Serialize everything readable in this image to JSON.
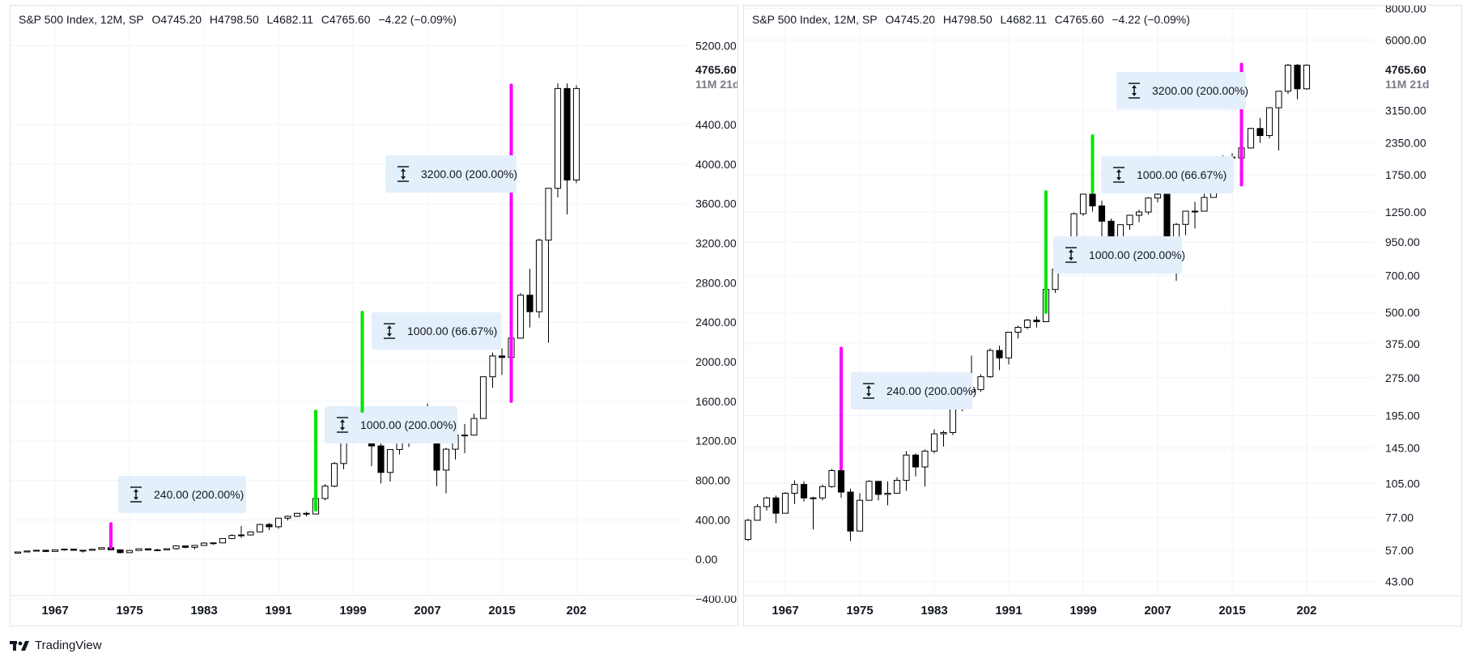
{
  "header": {
    "symbol": "S&P 500 Index, 12M, SP",
    "open": "O4745.20",
    "high": "H4798.50",
    "low": "L4682.11",
    "close": "C4765.60",
    "change": "−4.22 (−0.09%)"
  },
  "footer": {
    "brand": "TradingView"
  },
  "colors": {
    "up_fill": "#ffffff",
    "down_fill": "#000000",
    "wick": "#000000",
    "magenta": "#ff00ff",
    "green": "#00e600",
    "badge": "#e3effa"
  },
  "chart_data": [
    {
      "type": "candlestick",
      "scale": "linear",
      "ylim": [
        -400,
        5400
      ],
      "y_ticks": [
        "5200.00",
        "4400.00",
        "4000.00",
        "3600.00",
        "3200.00",
        "2800.00",
        "2400.00",
        "2000.00",
        "1600.00",
        "1200.00",
        "800.00",
        "400.00",
        "0.00",
        "−400.00"
      ],
      "x_ticks": [
        "1967",
        "1975",
        "1983",
        "1991",
        "1999",
        "2007",
        "2015",
        "202"
      ],
      "last_price_label": "4765.60",
      "countdown_label": "11M 21d",
      "annotations": [
        {
          "label": "240.00 (200.00%)",
          "year": 1973,
          "from": 120,
          "to": 360,
          "color": "magenta"
        },
        {
          "label": "1000.00 (200.00%)",
          "year": 1995,
          "from": 500,
          "to": 1500,
          "color": "green"
        },
        {
          "label": "1000.00 (66.67%)",
          "year": 2000,
          "from": 1500,
          "to": 2500,
          "color": "green"
        },
        {
          "label": "3200.00 (200.00%)",
          "year": 2016,
          "from": 1600,
          "to": 4800,
          "color": "magenta"
        }
      ]
    },
    {
      "type": "candlestick",
      "scale": "log",
      "ylim": [
        38,
        8200
      ],
      "y_ticks": [
        "8000.00",
        "6000.00",
        "3150.00",
        "2350.00",
        "1750.00",
        "1250.00",
        "950.00",
        "700.00",
        "500.00",
        "375.00",
        "275.00",
        "195.00",
        "145.00",
        "105.00",
        "77.00",
        "57.00",
        "43.00"
      ],
      "x_ticks": [
        "1967",
        "1975",
        "1983",
        "1991",
        "1999",
        "2007",
        "2015",
        "202"
      ],
      "last_price_label": "4765.60",
      "countdown_label": "11M 21d",
      "annotations": [
        {
          "label": "240.00 (200.00%)",
          "year": 1973,
          "from": 120,
          "to": 360,
          "color": "magenta"
        },
        {
          "label": "1000.00 (200.00%)",
          "year": 1995,
          "from": 500,
          "to": 1500,
          "color": "green"
        },
        {
          "label": "1000.00 (66.67%)",
          "year": 2000,
          "from": 1500,
          "to": 2500,
          "color": "green"
        },
        {
          "label": "3200.00 (200.00%)",
          "year": 2016,
          "from": 1600,
          "to": 4800,
          "color": "magenta"
        }
      ]
    }
  ],
  "candles": [
    {
      "year": 1963,
      "o": 63,
      "h": 76,
      "l": 62,
      "c": 75
    },
    {
      "year": 1964,
      "o": 75,
      "h": 87,
      "l": 75,
      "c": 85
    },
    {
      "year": 1965,
      "o": 85,
      "h": 93,
      "l": 82,
      "c": 92
    },
    {
      "year": 1966,
      "o": 92,
      "h": 94,
      "l": 73,
      "c": 80
    },
    {
      "year": 1967,
      "o": 80,
      "h": 97,
      "l": 80,
      "c": 96
    },
    {
      "year": 1968,
      "o": 96,
      "h": 108,
      "l": 87,
      "c": 104
    },
    {
      "year": 1969,
      "o": 104,
      "h": 107,
      "l": 89,
      "c": 92
    },
    {
      "year": 1970,
      "o": 92,
      "h": 93,
      "l": 69,
      "c": 92
    },
    {
      "year": 1971,
      "o": 92,
      "h": 104,
      "l": 90,
      "c": 102
    },
    {
      "year": 1972,
      "o": 102,
      "h": 120,
      "l": 101,
      "c": 118
    },
    {
      "year": 1973,
      "o": 118,
      "h": 120,
      "l": 92,
      "c": 97
    },
    {
      "year": 1974,
      "o": 97,
      "h": 100,
      "l": 62,
      "c": 68
    },
    {
      "year": 1975,
      "o": 68,
      "h": 96,
      "l": 70,
      "c": 90
    },
    {
      "year": 1976,
      "o": 90,
      "h": 108,
      "l": 90,
      "c": 107
    },
    {
      "year": 1977,
      "o": 107,
      "h": 107,
      "l": 90,
      "c": 95
    },
    {
      "year": 1978,
      "o": 95,
      "h": 107,
      "l": 86,
      "c": 96
    },
    {
      "year": 1979,
      "o": 96,
      "h": 111,
      "l": 96,
      "c": 108
    },
    {
      "year": 1980,
      "o": 108,
      "h": 141,
      "l": 98,
      "c": 136
    },
    {
      "year": 1981,
      "o": 136,
      "h": 138,
      "l": 112,
      "c": 122
    },
    {
      "year": 1982,
      "o": 122,
      "h": 143,
      "l": 102,
      "c": 141
    },
    {
      "year": 1983,
      "o": 141,
      "h": 172,
      "l": 138,
      "c": 165
    },
    {
      "year": 1984,
      "o": 165,
      "h": 170,
      "l": 147,
      "c": 167
    },
    {
      "year": 1985,
      "o": 167,
      "h": 212,
      "l": 163,
      "c": 211
    },
    {
      "year": 1986,
      "o": 211,
      "h": 254,
      "l": 203,
      "c": 242
    },
    {
      "year": 1987,
      "o": 242,
      "h": 337,
      "l": 216,
      "c": 247
    },
    {
      "year": 1988,
      "o": 247,
      "h": 284,
      "l": 242,
      "c": 278
    },
    {
      "year": 1989,
      "o": 278,
      "h": 360,
      "l": 275,
      "c": 353
    },
    {
      "year": 1990,
      "o": 353,
      "h": 369,
      "l": 295,
      "c": 330
    },
    {
      "year": 1991,
      "o": 330,
      "h": 418,
      "l": 311,
      "c": 417
    },
    {
      "year": 1992,
      "o": 417,
      "h": 442,
      "l": 394,
      "c": 436
    },
    {
      "year": 1993,
      "o": 436,
      "h": 471,
      "l": 429,
      "c": 466
    },
    {
      "year": 1994,
      "o": 466,
      "h": 482,
      "l": 435,
      "c": 459
    },
    {
      "year": 1995,
      "o": 459,
      "h": 622,
      "l": 459,
      "c": 616
    },
    {
      "year": 1996,
      "o": 616,
      "h": 761,
      "l": 597,
      "c": 741
    },
    {
      "year": 1997,
      "o": 741,
      "h": 984,
      "l": 729,
      "c": 970
    },
    {
      "year": 1998,
      "o": 970,
      "h": 1244,
      "l": 912,
      "c": 1229
    },
    {
      "year": 1999,
      "o": 1229,
      "h": 1473,
      "l": 1205,
      "c": 1469
    },
    {
      "year": 2000,
      "o": 1469,
      "h": 1553,
      "l": 1254,
      "c": 1320
    },
    {
      "year": 2001,
      "o": 1320,
      "h": 1383,
      "l": 944,
      "c": 1148
    },
    {
      "year": 2002,
      "o": 1148,
      "h": 1176,
      "l": 768,
      "c": 880
    },
    {
      "year": 2003,
      "o": 880,
      "h": 1112,
      "l": 788,
      "c": 1112
    },
    {
      "year": 2004,
      "o": 1112,
      "h": 1217,
      "l": 1061,
      "c": 1212
    },
    {
      "year": 2005,
      "o": 1212,
      "h": 1275,
      "l": 1137,
      "c": 1248
    },
    {
      "year": 2006,
      "o": 1248,
      "h": 1431,
      "l": 1219,
      "c": 1418
    },
    {
      "year": 2007,
      "o": 1418,
      "h": 1576,
      "l": 1363,
      "c": 1468
    },
    {
      "year": 2008,
      "o": 1468,
      "h": 1471,
      "l": 741,
      "c": 903
    },
    {
      "year": 2009,
      "o": 903,
      "h": 1130,
      "l": 667,
      "c": 1115
    },
    {
      "year": 2010,
      "o": 1115,
      "h": 1262,
      "l": 1011,
      "c": 1258
    },
    {
      "year": 2011,
      "o": 1258,
      "h": 1370,
      "l": 1075,
      "c": 1258
    },
    {
      "year": 2012,
      "o": 1258,
      "h": 1475,
      "l": 1258,
      "c": 1426
    },
    {
      "year": 2013,
      "o": 1426,
      "h": 1849,
      "l": 1426,
      "c": 1848
    },
    {
      "year": 2014,
      "o": 1848,
      "h": 2093,
      "l": 1737,
      "c": 2059
    },
    {
      "year": 2015,
      "o": 2059,
      "h": 2135,
      "l": 1867,
      "c": 2044
    },
    {
      "year": 2016,
      "o": 2044,
      "h": 2277,
      "l": 1810,
      "c": 2239
    },
    {
      "year": 2017,
      "o": 2239,
      "h": 2695,
      "l": 2233,
      "c": 2674
    },
    {
      "year": 2018,
      "o": 2674,
      "h": 2941,
      "l": 2347,
      "c": 2507
    },
    {
      "year": 2019,
      "o": 2507,
      "h": 3247,
      "l": 2444,
      "c": 3231
    },
    {
      "year": 2020,
      "o": 3231,
      "h": 3760,
      "l": 2192,
      "c": 3756
    },
    {
      "year": 2021,
      "o": 3756,
      "h": 4818,
      "l": 3663,
      "c": 4766
    },
    {
      "year": 2022,
      "o": 4766,
      "h": 4818,
      "l": 3492,
      "c": 3840
    },
    {
      "year": 2023,
      "o": 3840,
      "h": 4798,
      "l": 3808,
      "c": 4766
    }
  ]
}
